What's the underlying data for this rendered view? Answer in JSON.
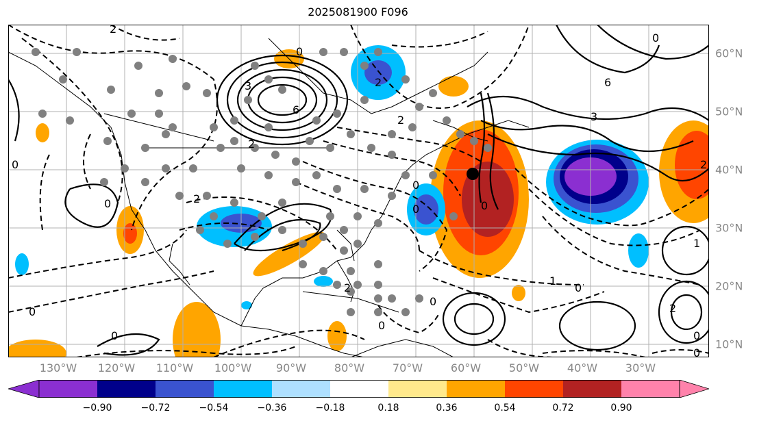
{
  "title": "2025081900 F096",
  "lon_labels": [
    "130°W",
    "120°W",
    "110°W",
    "100°W",
    "90°W",
    "80°W",
    "70°W",
    "60°W",
    "50°W",
    "40°W",
    "30°W"
  ],
  "lat_labels": [
    "60°N",
    "50°N",
    "40°N",
    "30°N",
    "20°N",
    "10°N"
  ],
  "colorbar": {
    "ticks": [
      "−0.90",
      "−0.72",
      "−0.54",
      "−0.36",
      "−0.18",
      "0.18",
      "0.36",
      "0.54",
      "0.72",
      "0.90"
    ],
    "colors": [
      "#8b2fd1",
      "#00008b",
      "#3a53d0",
      "#00bfff",
      "#aee0ff",
      "#ffffff",
      "#ffe98c",
      "#ffa500",
      "#ff4500",
      "#b22222",
      "#ff82ab"
    ]
  },
  "contour_labels": [
    "2",
    "0",
    "3",
    "6",
    "2",
    "2",
    "2",
    "0",
    "0",
    "0",
    "0",
    "0",
    "2",
    "6",
    "0",
    "3",
    "0",
    "1",
    "2",
    "1",
    "0",
    "2",
    "0",
    "0",
    "0",
    "0",
    "2",
    "0"
  ]
}
